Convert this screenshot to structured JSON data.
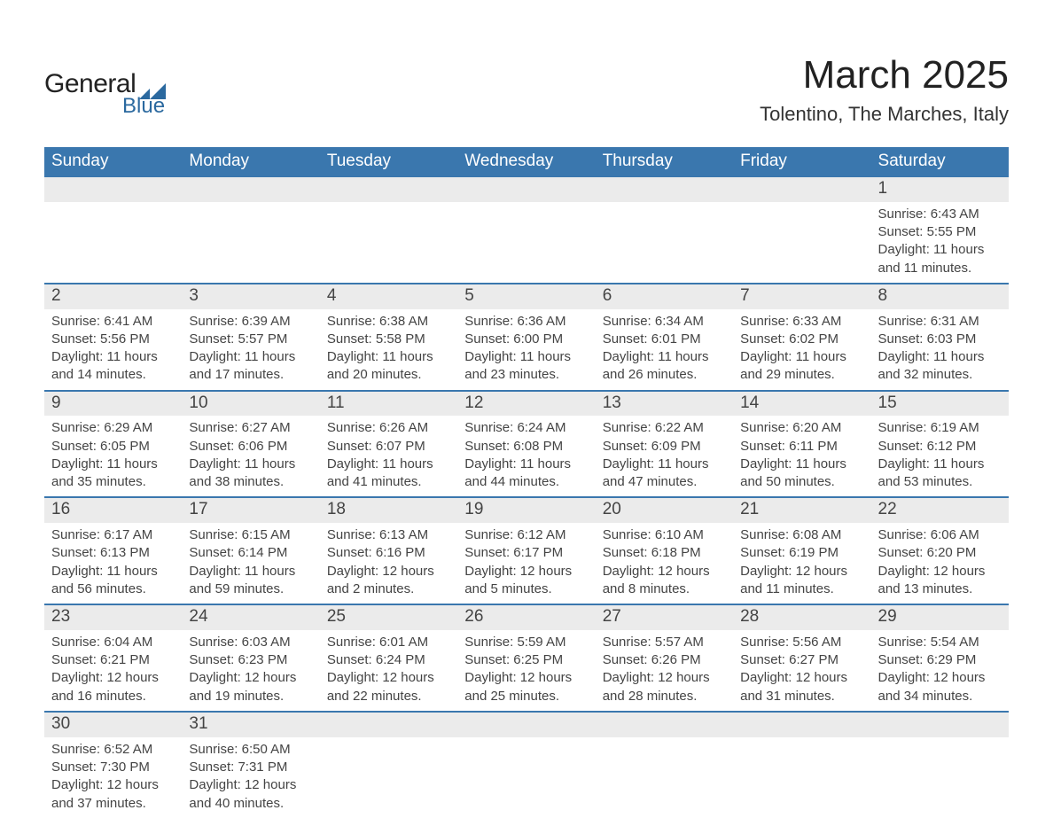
{
  "logo": {
    "word1": "General",
    "word2": "Blue",
    "text_color": "#222222",
    "accent_color": "#2b699f"
  },
  "title": "March 2025",
  "subtitle": "Tolentino, The Marches, Italy",
  "colors": {
    "header_bg": "#3a77ae",
    "header_text": "#ffffff",
    "daynum_bg": "#ebebeb",
    "row_divider": "#3a77ae",
    "body_text": "#444444",
    "page_bg": "#ffffff"
  },
  "typography": {
    "title_fontsize": 44,
    "subtitle_fontsize": 22,
    "dayheader_fontsize": 19,
    "daynum_fontsize": 19,
    "body_fontsize": 15
  },
  "calendar": {
    "day_headers": [
      "Sunday",
      "Monday",
      "Tuesday",
      "Wednesday",
      "Thursday",
      "Friday",
      "Saturday"
    ],
    "weeks": [
      [
        {
          "empty": true
        },
        {
          "empty": true
        },
        {
          "empty": true
        },
        {
          "empty": true
        },
        {
          "empty": true
        },
        {
          "empty": true
        },
        {
          "num": "1",
          "sunrise": "Sunrise: 6:43 AM",
          "sunset": "Sunset: 5:55 PM",
          "daylight": "Daylight: 11 hours and 11 minutes."
        }
      ],
      [
        {
          "num": "2",
          "sunrise": "Sunrise: 6:41 AM",
          "sunset": "Sunset: 5:56 PM",
          "daylight": "Daylight: 11 hours and 14 minutes."
        },
        {
          "num": "3",
          "sunrise": "Sunrise: 6:39 AM",
          "sunset": "Sunset: 5:57 PM",
          "daylight": "Daylight: 11 hours and 17 minutes."
        },
        {
          "num": "4",
          "sunrise": "Sunrise: 6:38 AM",
          "sunset": "Sunset: 5:58 PM",
          "daylight": "Daylight: 11 hours and 20 minutes."
        },
        {
          "num": "5",
          "sunrise": "Sunrise: 6:36 AM",
          "sunset": "Sunset: 6:00 PM",
          "daylight": "Daylight: 11 hours and 23 minutes."
        },
        {
          "num": "6",
          "sunrise": "Sunrise: 6:34 AM",
          "sunset": "Sunset: 6:01 PM",
          "daylight": "Daylight: 11 hours and 26 minutes."
        },
        {
          "num": "7",
          "sunrise": "Sunrise: 6:33 AM",
          "sunset": "Sunset: 6:02 PM",
          "daylight": "Daylight: 11 hours and 29 minutes."
        },
        {
          "num": "8",
          "sunrise": "Sunrise: 6:31 AM",
          "sunset": "Sunset: 6:03 PM",
          "daylight": "Daylight: 11 hours and 32 minutes."
        }
      ],
      [
        {
          "num": "9",
          "sunrise": "Sunrise: 6:29 AM",
          "sunset": "Sunset: 6:05 PM",
          "daylight": "Daylight: 11 hours and 35 minutes."
        },
        {
          "num": "10",
          "sunrise": "Sunrise: 6:27 AM",
          "sunset": "Sunset: 6:06 PM",
          "daylight": "Daylight: 11 hours and 38 minutes."
        },
        {
          "num": "11",
          "sunrise": "Sunrise: 6:26 AM",
          "sunset": "Sunset: 6:07 PM",
          "daylight": "Daylight: 11 hours and 41 minutes."
        },
        {
          "num": "12",
          "sunrise": "Sunrise: 6:24 AM",
          "sunset": "Sunset: 6:08 PM",
          "daylight": "Daylight: 11 hours and 44 minutes."
        },
        {
          "num": "13",
          "sunrise": "Sunrise: 6:22 AM",
          "sunset": "Sunset: 6:09 PM",
          "daylight": "Daylight: 11 hours and 47 minutes."
        },
        {
          "num": "14",
          "sunrise": "Sunrise: 6:20 AM",
          "sunset": "Sunset: 6:11 PM",
          "daylight": "Daylight: 11 hours and 50 minutes."
        },
        {
          "num": "15",
          "sunrise": "Sunrise: 6:19 AM",
          "sunset": "Sunset: 6:12 PM",
          "daylight": "Daylight: 11 hours and 53 minutes."
        }
      ],
      [
        {
          "num": "16",
          "sunrise": "Sunrise: 6:17 AM",
          "sunset": "Sunset: 6:13 PM",
          "daylight": "Daylight: 11 hours and 56 minutes."
        },
        {
          "num": "17",
          "sunrise": "Sunrise: 6:15 AM",
          "sunset": "Sunset: 6:14 PM",
          "daylight": "Daylight: 11 hours and 59 minutes."
        },
        {
          "num": "18",
          "sunrise": "Sunrise: 6:13 AM",
          "sunset": "Sunset: 6:16 PM",
          "daylight": "Daylight: 12 hours and 2 minutes."
        },
        {
          "num": "19",
          "sunrise": "Sunrise: 6:12 AM",
          "sunset": "Sunset: 6:17 PM",
          "daylight": "Daylight: 12 hours and 5 minutes."
        },
        {
          "num": "20",
          "sunrise": "Sunrise: 6:10 AM",
          "sunset": "Sunset: 6:18 PM",
          "daylight": "Daylight: 12 hours and 8 minutes."
        },
        {
          "num": "21",
          "sunrise": "Sunrise: 6:08 AM",
          "sunset": "Sunset: 6:19 PM",
          "daylight": "Daylight: 12 hours and 11 minutes."
        },
        {
          "num": "22",
          "sunrise": "Sunrise: 6:06 AM",
          "sunset": "Sunset: 6:20 PM",
          "daylight": "Daylight: 12 hours and 13 minutes."
        }
      ],
      [
        {
          "num": "23",
          "sunrise": "Sunrise: 6:04 AM",
          "sunset": "Sunset: 6:21 PM",
          "daylight": "Daylight: 12 hours and 16 minutes."
        },
        {
          "num": "24",
          "sunrise": "Sunrise: 6:03 AM",
          "sunset": "Sunset: 6:23 PM",
          "daylight": "Daylight: 12 hours and 19 minutes."
        },
        {
          "num": "25",
          "sunrise": "Sunrise: 6:01 AM",
          "sunset": "Sunset: 6:24 PM",
          "daylight": "Daylight: 12 hours and 22 minutes."
        },
        {
          "num": "26",
          "sunrise": "Sunrise: 5:59 AM",
          "sunset": "Sunset: 6:25 PM",
          "daylight": "Daylight: 12 hours and 25 minutes."
        },
        {
          "num": "27",
          "sunrise": "Sunrise: 5:57 AM",
          "sunset": "Sunset: 6:26 PM",
          "daylight": "Daylight: 12 hours and 28 minutes."
        },
        {
          "num": "28",
          "sunrise": "Sunrise: 5:56 AM",
          "sunset": "Sunset: 6:27 PM",
          "daylight": "Daylight: 12 hours and 31 minutes."
        },
        {
          "num": "29",
          "sunrise": "Sunrise: 5:54 AM",
          "sunset": "Sunset: 6:29 PM",
          "daylight": "Daylight: 12 hours and 34 minutes."
        }
      ],
      [
        {
          "num": "30",
          "sunrise": "Sunrise: 6:52 AM",
          "sunset": "Sunset: 7:30 PM",
          "daylight": "Daylight: 12 hours and 37 minutes."
        },
        {
          "num": "31",
          "sunrise": "Sunrise: 6:50 AM",
          "sunset": "Sunset: 7:31 PM",
          "daylight": "Daylight: 12 hours and 40 minutes."
        },
        {
          "empty": true
        },
        {
          "empty": true
        },
        {
          "empty": true
        },
        {
          "empty": true
        },
        {
          "empty": true
        }
      ]
    ]
  }
}
